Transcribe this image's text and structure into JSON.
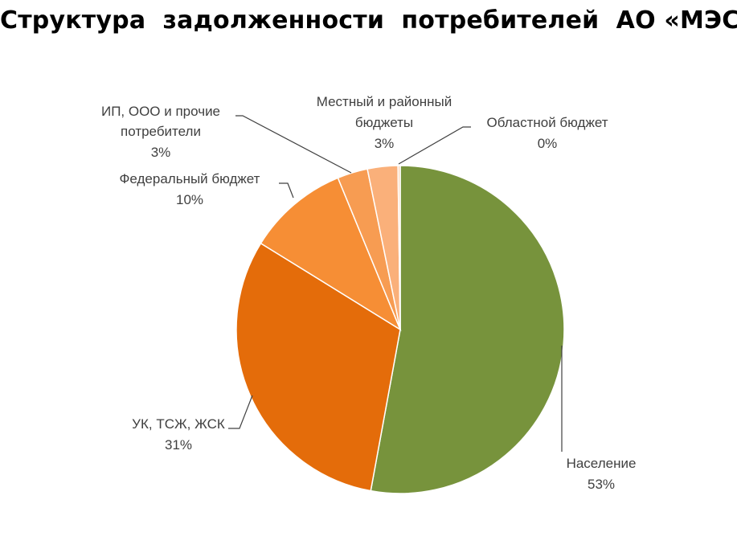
{
  "title": "Структура  задолженности  потребителей  АО «МЭС»",
  "chart_data": {
    "type": "pie",
    "start_angle_deg": 0,
    "direction": "clockwise",
    "slices": [
      {
        "name": "Население",
        "value": 53,
        "label": "53%",
        "color": "#77933c"
      },
      {
        "name": "УК, ТСЖ, ЖСК",
        "value": 31,
        "label": "31%",
        "color": "#e46c0a"
      },
      {
        "name": "Федеральный бюджет",
        "value": 10,
        "label": "10%",
        "color": "#f68e35"
      },
      {
        "name": "ИП, ООО и прочие потребители",
        "value": 3,
        "label": "3%",
        "color": "#f79c52"
      },
      {
        "name": "Местный и районный бюджеты",
        "value": 3,
        "label": "3%",
        "color": "#fab07a"
      },
      {
        "name": "Областной бюджет",
        "value": 0,
        "label": "0%",
        "color": "#fcd5b4"
      }
    ]
  }
}
